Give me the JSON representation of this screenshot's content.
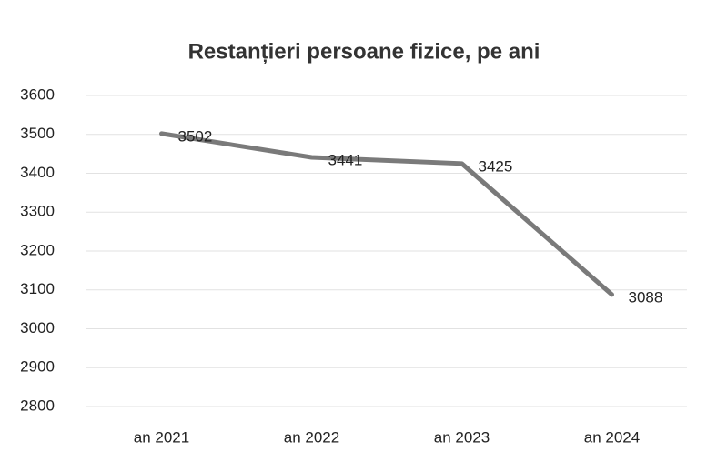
{
  "chart_data": {
    "type": "line",
    "title": "Restanțieri persoane fizice, pe ani",
    "categories": [
      "an 2021",
      "an 2022",
      "an 2023",
      "an 2024"
    ],
    "series": [
      {
        "name": "Restanțieri",
        "color": "#7a7a7a",
        "values": [
          3502,
          3441,
          3425,
          3088
        ]
      }
    ],
    "ylim": [
      2800,
      3600
    ],
    "yticks": [
      2800,
      2900,
      3000,
      3100,
      3200,
      3300,
      3400,
      3500,
      3600
    ],
    "grid": true,
    "legend": false
  }
}
